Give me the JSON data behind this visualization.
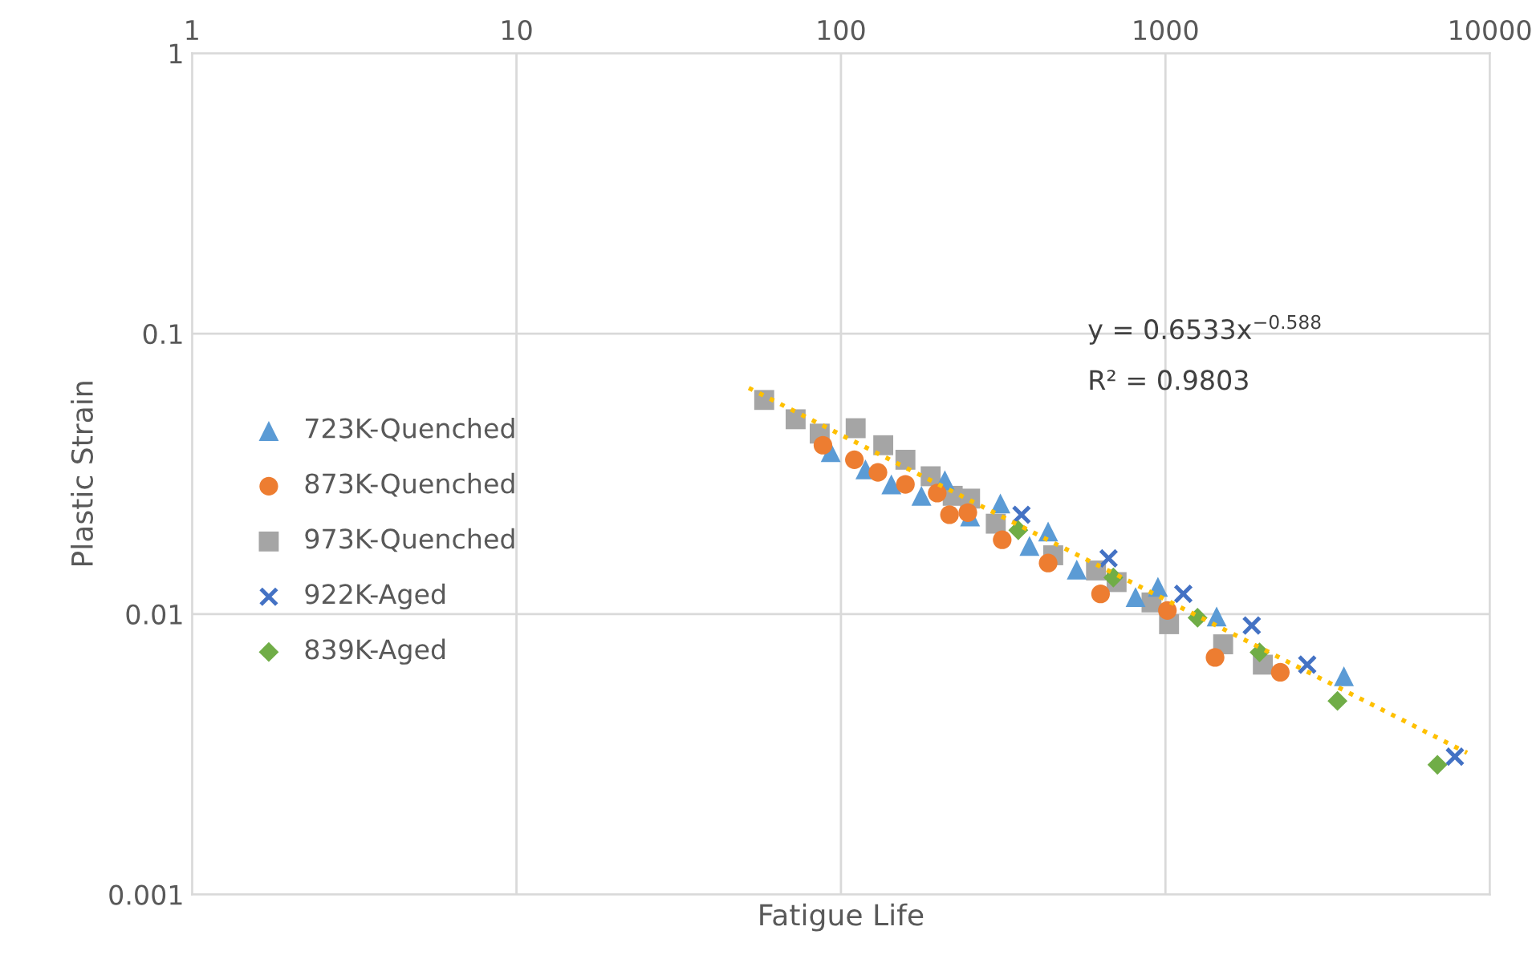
{
  "chart_data": {
    "type": "scatter",
    "xlabel": "Fatigue Life",
    "ylabel": "Plastic Strain",
    "log": "xy",
    "xlim": [
      1,
      10000
    ],
    "ylim": [
      0.001,
      1
    ],
    "xticks": [
      1,
      10,
      100,
      1000,
      10000
    ],
    "yticks": [
      0.001,
      0.01,
      0.1,
      1
    ],
    "grid": true,
    "legend": "left",
    "annotations": [
      "y = 0.6533x$^{−0.588}$",
      "R² = 0.9803"
    ],
    "series": [
      {
        "name": "723K-Quenched",
        "color": "#5b9bd5",
        "marker": "triangle",
        "x": [
          93,
          119,
          143,
          177,
          209,
          250,
          310,
          381,
          435,
          533,
          809,
          948,
          1438,
          3548
        ],
        "values": [
          0.0378,
          0.0328,
          0.029,
          0.0264,
          0.03,
          0.0223,
          0.0248,
          0.0175,
          0.0197,
          0.0144,
          0.0115,
          0.0125,
          0.0098,
          0.006
        ]
      },
      {
        "name": "873K-Quenched",
        "color": "#ed7d31",
        "marker": "circle",
        "x": [
          88,
          110,
          130,
          158,
          198,
          216,
          246,
          314,
          435,
          631,
          1014,
          1422,
          2259
        ],
        "values": [
          0.04,
          0.0355,
          0.032,
          0.029,
          0.027,
          0.0226,
          0.023,
          0.0184,
          0.0152,
          0.0118,
          0.0103,
          0.007,
          0.0062
        ]
      },
      {
        "name": "973K-Quenched",
        "color": "#a5a5a5",
        "marker": "square",
        "x": [
          58,
          72.5,
          86,
          111,
          135,
          158,
          189,
          221,
          250,
          300,
          451,
          611,
          707,
          906,
          1026,
          1506,
          1996
        ],
        "values": [
          0.058,
          0.0495,
          0.044,
          0.046,
          0.04,
          0.0355,
          0.031,
          0.0264,
          0.0258,
          0.021,
          0.0162,
          0.0143,
          0.013,
          0.011,
          0.0092,
          0.0078,
          0.0066
        ]
      },
      {
        "name": "922K-Aged",
        "color": "#4472c4",
        "marker": "cross",
        "x": [
          360,
          668,
          1135,
          1845,
          2735,
          7800
        ],
        "values": [
          0.0226,
          0.0158,
          0.0118,
          0.0091,
          0.0066,
          0.0031
        ]
      },
      {
        "name": "839K-Aged",
        "color": "#70ad47",
        "marker": "diamond",
        "x": [
          352,
          691,
          1256,
          1950,
          3390,
          6890
        ],
        "values": [
          0.0199,
          0.0135,
          0.0097,
          0.0073,
          0.0049,
          0.0029
        ]
      },
      {
        "type": "line",
        "color": "#ffc000",
        "line_style": "dotted",
        "marker": "none",
        "x": [
          52,
          8500
        ],
        "values": [
          0.064,
          0.0032
        ]
      }
    ]
  }
}
